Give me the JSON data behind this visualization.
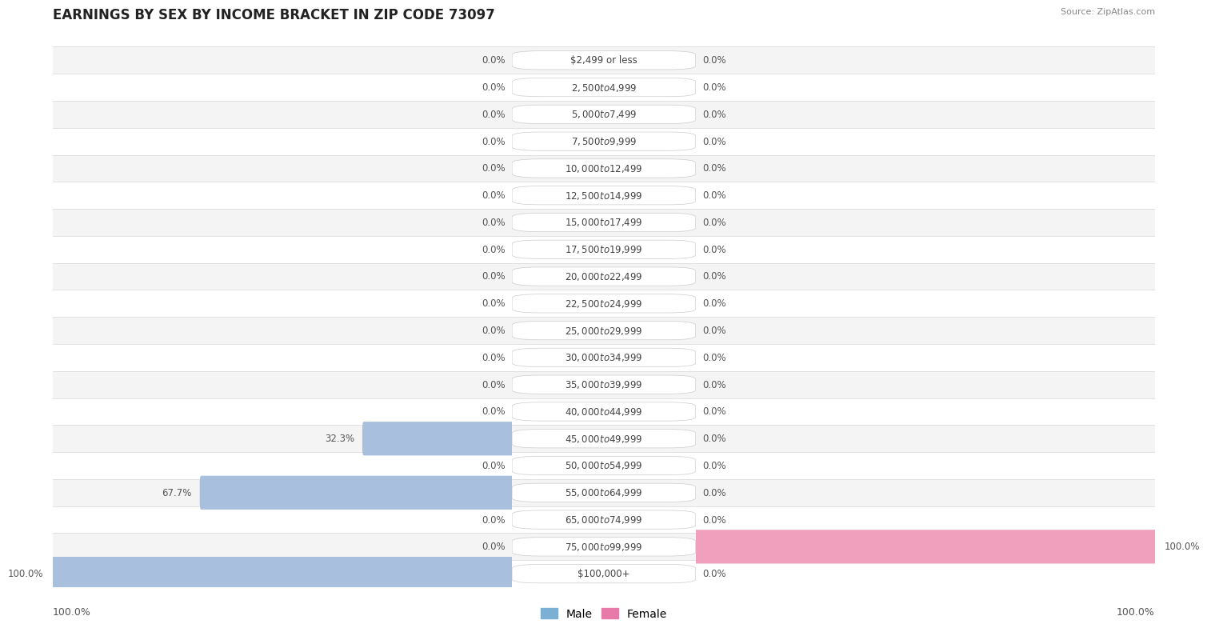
{
  "title": "EARNINGS BY SEX BY INCOME BRACKET IN ZIP CODE 73097",
  "source": "Source: ZipAtlas.com",
  "categories": [
    "$2,499 or less",
    "$2,500 to $4,999",
    "$5,000 to $7,499",
    "$7,500 to $9,999",
    "$10,000 to $12,499",
    "$12,500 to $14,999",
    "$15,000 to $17,499",
    "$17,500 to $19,999",
    "$20,000 to $22,499",
    "$22,500 to $24,999",
    "$25,000 to $29,999",
    "$30,000 to $34,999",
    "$35,000 to $39,999",
    "$40,000 to $44,999",
    "$45,000 to $49,999",
    "$50,000 to $54,999",
    "$55,000 to $64,999",
    "$65,000 to $74,999",
    "$75,000 to $99,999",
    "$100,000+"
  ],
  "male_values": [
    0.0,
    0.0,
    0.0,
    0.0,
    0.0,
    0.0,
    0.0,
    0.0,
    0.0,
    0.0,
    0.0,
    0.0,
    0.0,
    0.0,
    32.3,
    0.0,
    67.7,
    0.0,
    0.0,
    100.0
  ],
  "female_values": [
    0.0,
    0.0,
    0.0,
    0.0,
    0.0,
    0.0,
    0.0,
    0.0,
    0.0,
    0.0,
    0.0,
    0.0,
    0.0,
    0.0,
    0.0,
    0.0,
    0.0,
    0.0,
    100.0,
    0.0
  ],
  "male_color": "#a8c0de",
  "female_color": "#f0a0bc",
  "row_colors": [
    "#f4f4f4",
    "#ffffff"
  ],
  "title_color": "#222222",
  "label_fontsize": 8.5,
  "title_fontsize": 12,
  "x_max": 100.0,
  "legend_male_color": "#7bafd4",
  "legend_female_color": "#e87aaa",
  "separator_color": "#dddddd",
  "label_text_color": "#444444",
  "value_text_color": "#555555",
  "bottom_axis_label_left": "100.0%",
  "bottom_axis_label_right": "100.0%"
}
